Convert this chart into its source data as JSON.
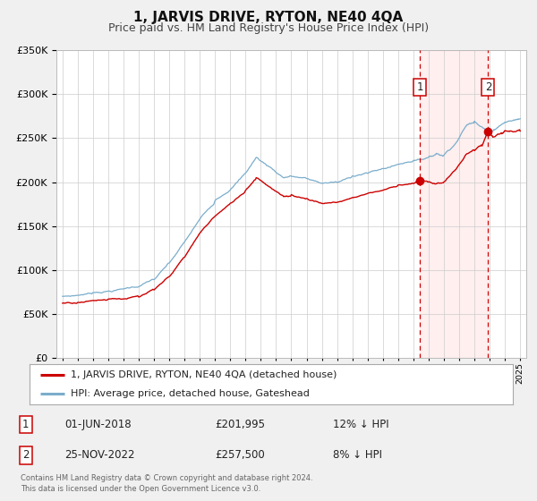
{
  "title": "1, JARVIS DRIVE, RYTON, NE40 4QA",
  "subtitle": "Price paid vs. HM Land Registry's House Price Index (HPI)",
  "background_color": "#f0f0f0",
  "plot_bg_color": "#ffffff",
  "legend_label_red": "1, JARVIS DRIVE, RYTON, NE40 4QA (detached house)",
  "legend_label_blue": "HPI: Average price, detached house, Gateshead",
  "transaction1_date": "01-JUN-2018",
  "transaction1_price": "£201,995",
  "transaction1_hpi": "12% ↓ HPI",
  "transaction2_date": "25-NOV-2022",
  "transaction2_price": "£257,500",
  "transaction2_hpi": "8% ↓ HPI",
  "footer_line1": "Contains HM Land Registry data © Crown copyright and database right 2024.",
  "footer_line2": "This data is licensed under the Open Government Licence v3.0.",
  "vline1_x": 2018.42,
  "vline2_x": 2022.9,
  "point1_x": 2018.42,
  "point1_y": 201995,
  "point2_x": 2022.9,
  "point2_y": 257500,
  "ylim": [
    0,
    350000
  ],
  "xlim_start": 1994.6,
  "xlim_end": 2025.4,
  "red_color": "#cc0000",
  "blue_color": "#7aadcc",
  "vline_color": "#cc0000",
  "title_fontsize": 11,
  "subtitle_fontsize": 9
}
